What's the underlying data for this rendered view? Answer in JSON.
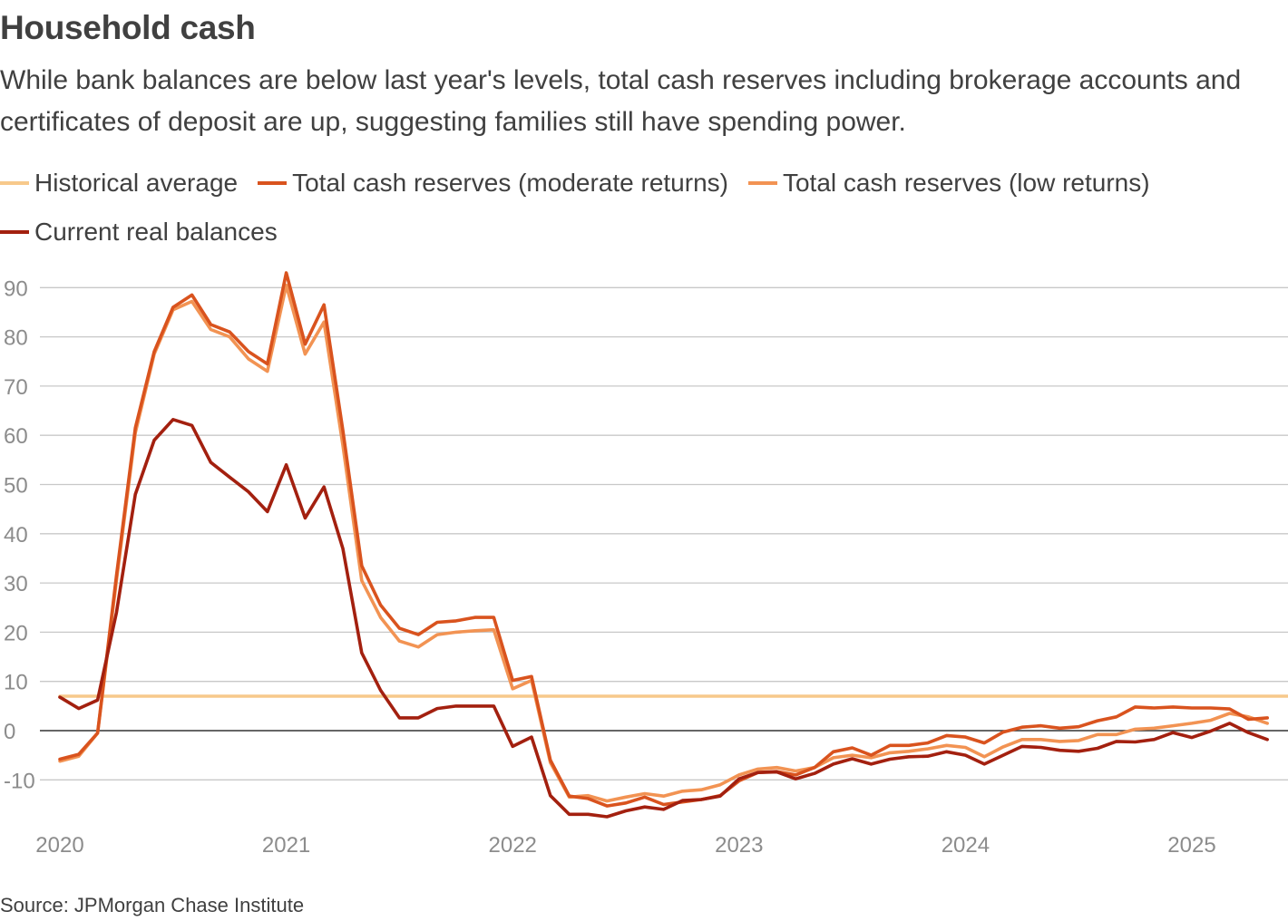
{
  "title": "Household cash",
  "subtitle": "While bank balances are below last year's levels, total cash reserves including brokerage accounts and certificates of deposit are up, suggesting families still have spending power.",
  "source": "Source: JPMorgan Chase Institute",
  "legend": [
    {
      "label": "Historical average",
      "color": "#f7c98b"
    },
    {
      "label": "Total cash reserves (moderate returns)",
      "color": "#d9531e"
    },
    {
      "label": "Total cash reserves (low returns)",
      "color": "#f29353"
    },
    {
      "label": "Current real balances",
      "color": "#a3200f"
    }
  ],
  "chart_data": {
    "type": "line",
    "x_start": "2020-01",
    "x_step": "month",
    "x_ticks": [
      "2020",
      "2021",
      "2022",
      "2023",
      "2024",
      "2025"
    ],
    "ylim": [
      -18,
      95
    ],
    "y_ticks": [
      90,
      80,
      70,
      60,
      50,
      40,
      30,
      20,
      10,
      0,
      -10
    ],
    "grid": true,
    "zero_line": true,
    "series": [
      {
        "name": "Historical average",
        "color": "#f7c98b",
        "values": [
          7,
          7,
          7,
          7,
          7,
          7,
          7,
          7,
          7,
          7,
          7,
          7,
          7,
          7,
          7,
          7,
          7,
          7,
          7,
          7,
          7,
          7,
          7,
          7,
          7,
          7,
          7,
          7,
          7,
          7,
          7,
          7,
          7,
          7,
          7,
          7,
          7,
          7,
          7,
          7,
          7,
          7,
          7,
          7,
          7,
          7,
          7,
          7,
          7,
          7,
          7,
          7,
          7,
          7,
          7,
          7,
          7,
          7,
          7,
          7,
          7,
          7,
          7,
          7,
          7,
          7,
          7
        ]
      },
      {
        "name": "Total cash reserves (low returns)",
        "color": "#f29353",
        "values": [
          -6.2,
          -5.2,
          -0.5,
          30.5,
          60.5,
          76.5,
          85.5,
          87.2,
          81.5,
          80,
          75.5,
          73,
          90.5,
          76.5,
          83,
          58,
          30.5,
          23,
          18.2,
          17,
          19.5,
          20,
          20.3,
          20.5,
          8.5,
          10.2,
          -6.5,
          -13.5,
          -13.2,
          -14.3,
          -13.5,
          -12.8,
          -13.3,
          -12.3,
          -12,
          -11,
          -9,
          -7.8,
          -7.5,
          -8.2,
          -7.5,
          -5.5,
          -5,
          -5.5,
          -4.5,
          -4.2,
          -3.7,
          -3,
          -3.4,
          -5.3,
          -3.3,
          -1.8,
          -1.8,
          -2.2,
          -2,
          -0.8,
          -0.8,
          0.3,
          0.5,
          1,
          1.5,
          2.1,
          3.5,
          2.8,
          1.5
        ]
      },
      {
        "name": "Total cash reserves (moderate returns)",
        "color": "#d9531e",
        "values": [
          -5.8,
          -4.8,
          -0.5,
          31.5,
          61.5,
          77,
          86,
          88.5,
          82.5,
          81,
          77,
          74.5,
          93,
          78.5,
          86.5,
          61,
          33.5,
          25.5,
          20.8,
          19.5,
          22,
          22.3,
          23,
          23,
          10.2,
          11,
          -6,
          -13.3,
          -13.8,
          -15.3,
          -14.7,
          -13.5,
          -15,
          -14.5,
          -14,
          -13.2,
          -10.2,
          -8.5,
          -8.3,
          -9,
          -7.5,
          -4.3,
          -3.5,
          -5,
          -3,
          -3,
          -2.5,
          -1,
          -1.3,
          -2.5,
          -0.3,
          0.7,
          1,
          0.5,
          0.8,
          2,
          2.8,
          4.8,
          4.6,
          4.8,
          4.6,
          4.6,
          4.4,
          2.3,
          2.6
        ]
      },
      {
        "name": "Current real balances",
        "color": "#a3200f",
        "values": [
          6.8,
          4.5,
          6.2,
          24,
          48,
          59,
          63.2,
          62,
          54.5,
          51.5,
          48.5,
          44.5,
          54,
          43.2,
          49.5,
          37,
          15.8,
          8.2,
          2.6,
          2.6,
          4.5,
          5,
          5,
          5,
          -3.2,
          -1.3,
          -13.2,
          -17,
          -17,
          -17.5,
          -16.3,
          -15.5,
          -16,
          -14.2,
          -14,
          -13.3,
          -9.8,
          -8.5,
          -8.4,
          -9.8,
          -8.7,
          -6.8,
          -5.7,
          -6.8,
          -5.8,
          -5.3,
          -5.2,
          -4.3,
          -5,
          -6.8,
          -5,
          -3.2,
          -3.4,
          -4,
          -4.2,
          -3.6,
          -2.2,
          -2.3,
          -1.8,
          -0.4,
          -1.4,
          -0.1,
          1.5,
          -0.4,
          -1.8
        ]
      }
    ]
  }
}
